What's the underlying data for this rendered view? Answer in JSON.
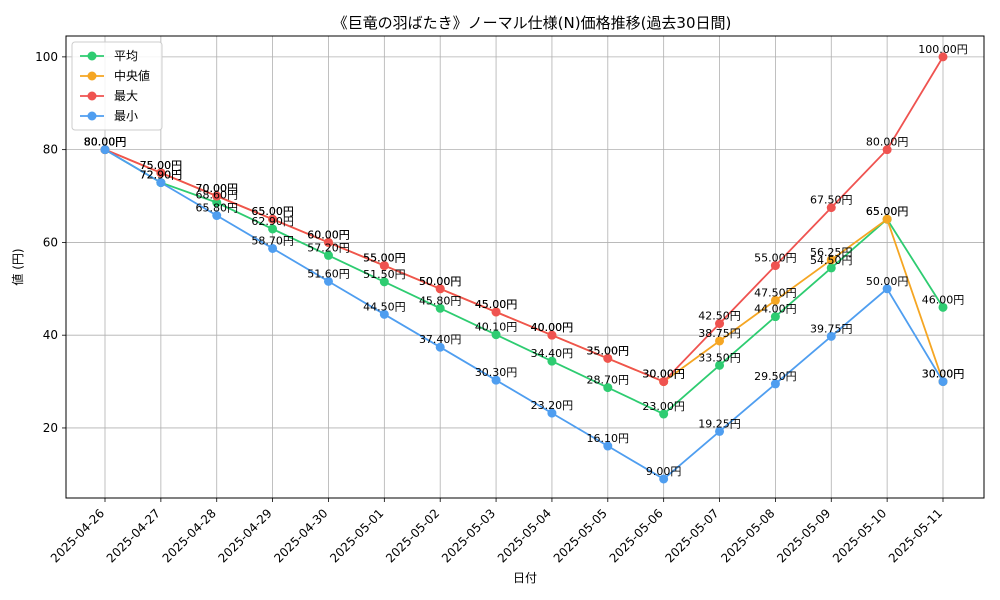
{
  "chart_data": {
    "type": "line",
    "title": "《巨竜の羽ばたき》ノーマル仕様(N)価格推移(過去30日間)",
    "xlabel": "日付",
    "ylabel": "値 (円)",
    "value_suffix": "円",
    "x": [
      "2025-04-26",
      "2025-04-27",
      "2025-04-28",
      "2025-04-29",
      "2025-04-30",
      "2025-05-01",
      "2025-05-02",
      "2025-05-03",
      "2025-05-04",
      "2025-05-05",
      "2025-05-06",
      "2025-05-07",
      "2025-05-08",
      "2025-05-09",
      "2025-05-10",
      "2025-05-11"
    ],
    "ylim": [
      4.9,
      104.5
    ],
    "yticks": [
      20,
      40,
      60,
      80,
      100
    ],
    "grid": true,
    "legend_position": "top-left",
    "series": [
      {
        "name": "平均",
        "color": "#2ecc71",
        "values": [
          80.0,
          72.9,
          68.6,
          62.9,
          57.2,
          51.5,
          45.8,
          40.1,
          34.4,
          28.7,
          23.0,
          33.5,
          44.0,
          54.5,
          65.0,
          46.0
        ]
      },
      {
        "name": "中央値",
        "color": "#f5a623",
        "values": [
          80.0,
          75.0,
          70.0,
          65.0,
          60.0,
          55.0,
          50.0,
          45.0,
          40.0,
          35.0,
          30.0,
          38.75,
          47.5,
          56.25,
          65.0,
          30.0
        ]
      },
      {
        "name": "最大",
        "color": "#ef5350",
        "values": [
          80.0,
          75.0,
          70.0,
          65.0,
          60.0,
          55.0,
          50.0,
          45.0,
          40.0,
          35.0,
          30.0,
          42.5,
          55.0,
          67.5,
          80.0,
          100.0
        ]
      },
      {
        "name": "最小",
        "color": "#4f9ef0",
        "values": [
          80.0,
          72.9,
          65.8,
          58.7,
          51.6,
          44.5,
          37.4,
          30.3,
          23.2,
          16.1,
          9.0,
          19.25,
          29.5,
          39.75,
          50.0,
          30.0
        ]
      }
    ]
  }
}
